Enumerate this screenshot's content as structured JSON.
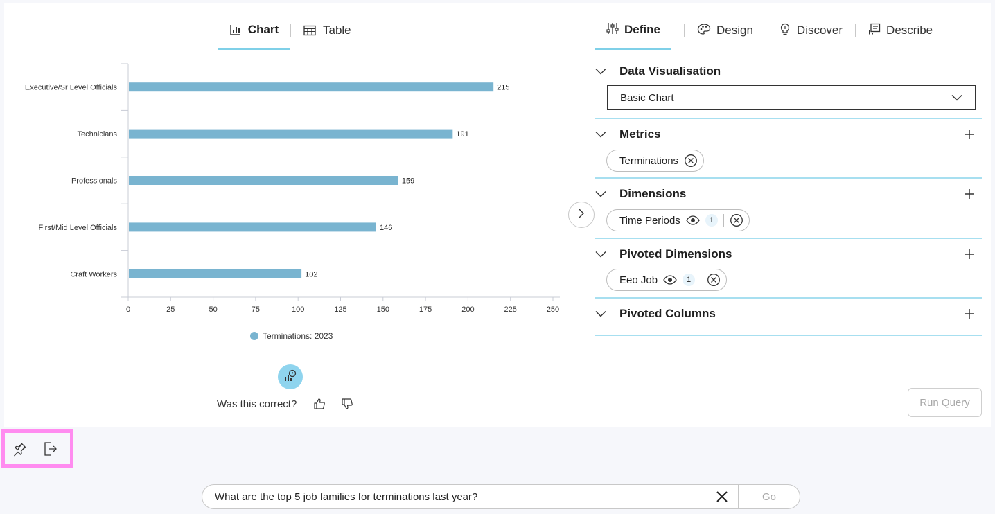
{
  "left_panel": {
    "tabs": [
      {
        "label": "Chart",
        "icon": "bar-chart-icon",
        "active": true
      },
      {
        "label": "Table",
        "icon": "table-icon",
        "active": false
      }
    ],
    "feedback": {
      "question": "Was this correct?"
    }
  },
  "right_panel": {
    "tabs": [
      {
        "label": "Define",
        "icon": "sliders-icon",
        "active": true
      },
      {
        "label": "Design",
        "icon": "palette-icon",
        "active": false
      },
      {
        "label": "Discover",
        "icon": "lightbulb-icon",
        "active": false
      },
      {
        "label": "Describe",
        "icon": "describe-icon",
        "active": false
      }
    ],
    "sections": {
      "data_visualisation": {
        "title": "Data Visualisation",
        "selected": "Basic Chart"
      },
      "metrics": {
        "title": "Metrics",
        "chips": [
          {
            "label": "Terminations"
          }
        ]
      },
      "dimensions": {
        "title": "Dimensions",
        "chips": [
          {
            "label": "Time Periods",
            "count": "1"
          }
        ]
      },
      "pivoted_dimensions": {
        "title": "Pivoted Dimensions",
        "chips": [
          {
            "label": "Eeo Job",
            "count": "1"
          }
        ]
      },
      "pivoted_columns": {
        "title": "Pivoted Columns"
      }
    },
    "run_query_label": "Run Query"
  },
  "query": {
    "value": "What are the top 5 job families for terminations last year?",
    "go_label": "Go"
  },
  "colors": {
    "bar": "#79b4d0",
    "accent": "#7fd0e8",
    "highlight_border": "#ff8cf0"
  },
  "chart_data": {
    "type": "bar",
    "orientation": "horizontal",
    "categories": [
      "Executive/Sr Level Officials",
      "Technicians",
      "Professionals",
      "First/Mid Level Officials",
      "Craft Workers"
    ],
    "series": [
      {
        "name": "Terminations: 2023",
        "values": [
          215,
          191,
          159,
          146,
          102
        ]
      }
    ],
    "xlim": [
      0,
      250
    ],
    "x_ticks": [
      0,
      25,
      50,
      75,
      100,
      125,
      150,
      175,
      200,
      225,
      250
    ],
    "grid": false,
    "legend": "bottom-center"
  }
}
